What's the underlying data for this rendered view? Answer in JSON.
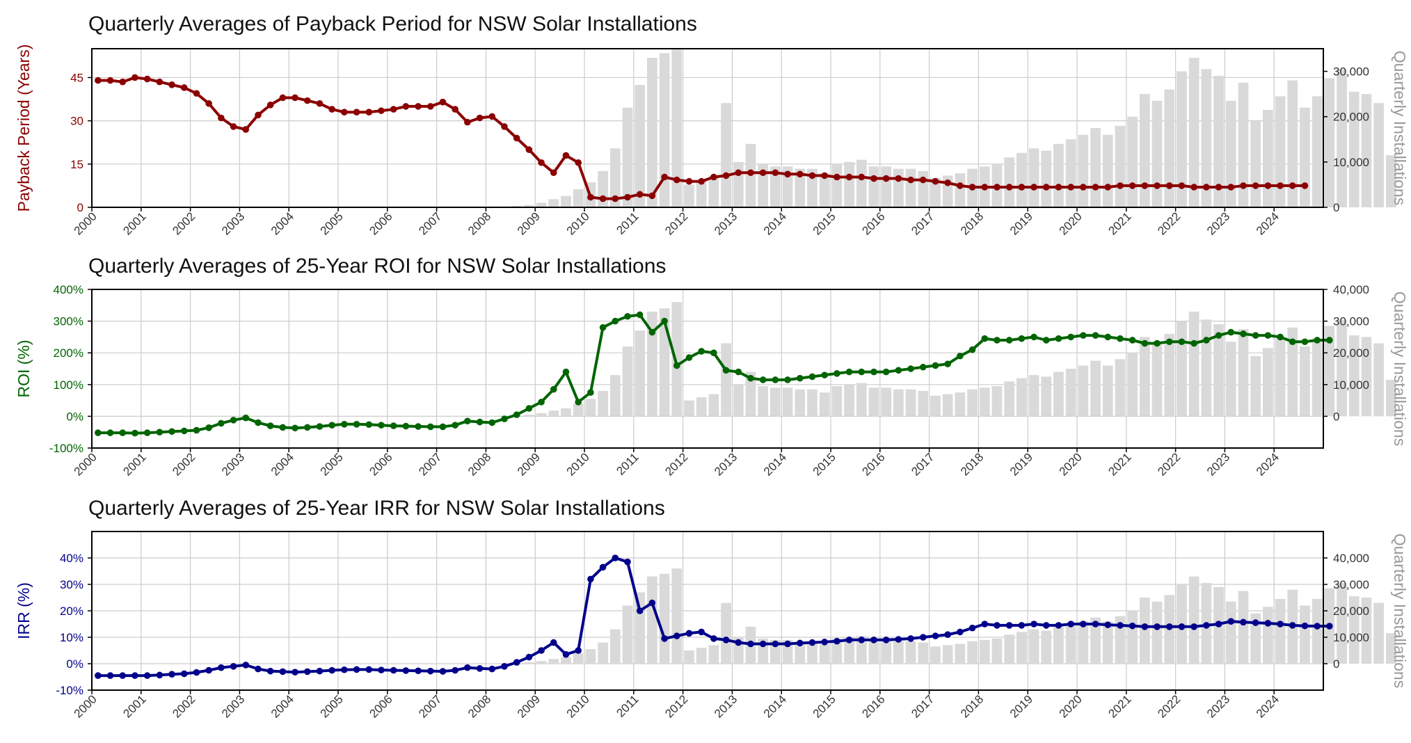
{
  "colors": {
    "payback": "#8B0000",
    "roi": "#006400",
    "irr": "#00008B",
    "bars": "#D9D9D9",
    "grid": "#CCCCCC",
    "right_axis_label": "#999999"
  },
  "installations": {
    "start_year": 2000,
    "note_values_by_quarter": "quarterly installation counts, shared by all three panels",
    "values": [
      0,
      0,
      0,
      0,
      0,
      0,
      0,
      0,
      0,
      0,
      0,
      0,
      0,
      0,
      0,
      0,
      0,
      0,
      0,
      0,
      0,
      0,
      0,
      0,
      0,
      0,
      0,
      0,
      0,
      0,
      0,
      0,
      100,
      200,
      300,
      500,
      1000,
      1800,
      2500,
      4000,
      5500,
      8000,
      13000,
      22000,
      27000,
      33000,
      34000,
      36000,
      5000,
      6000,
      7000,
      23000,
      10000,
      14000,
      9500,
      9000,
      9000,
      8500,
      8500,
      7500,
      9500,
      10000,
      10500,
      9000,
      9000,
      8500,
      8500,
      8000,
      6500,
      7000,
      7500,
      8500,
      9000,
      9500,
      11000,
      12000,
      13000,
      12500,
      14000,
      15000,
      16000,
      17500,
      16000,
      18000,
      20000,
      25000,
      23500,
      26000,
      30000,
      33000,
      30500,
      29000,
      23500,
      27500,
      19000,
      21500,
      24500,
      28000,
      22000,
      24500,
      28500,
      30500,
      25500,
      25000,
      23000,
      11500
    ]
  },
  "chart_data": [
    {
      "type": "line",
      "title": "Quarterly Averages of Payback Period for NSW Solar Installations",
      "ylabel": "Payback Period (Years)",
      "ylabel_right": "Quarterly Installations",
      "ylim": [
        0,
        55
      ],
      "yticks": [
        0,
        15,
        30,
        45
      ],
      "yticklabels": [
        "0",
        "15",
        "30",
        "45"
      ],
      "ylim_right": [
        0,
        35000
      ],
      "yticks_right": [
        0,
        10000,
        20000,
        30000
      ],
      "yticklabels_right": [
        "0",
        "10,000",
        "20,000",
        "30,000"
      ],
      "xticklabels": [
        "2000",
        "2001",
        "2002",
        "2003",
        "2004",
        "2005",
        "2006",
        "2007",
        "2008",
        "2009",
        "2010",
        "2011",
        "2012",
        "2013",
        "2014",
        "2015",
        "2016",
        "2017",
        "2018",
        "2019",
        "2020",
        "2021",
        "2022",
        "2023",
        "2024"
      ],
      "grid": true,
      "series": [
        {
          "values": [
            44,
            44,
            43.5,
            45,
            44.5,
            43.5,
            42.5,
            41.5,
            39.5,
            36,
            31,
            28,
            27,
            32,
            35.5,
            38,
            38,
            37,
            36,
            34,
            33,
            33,
            33,
            33.5,
            34,
            35,
            35,
            35,
            36.5,
            34,
            29.5,
            31,
            31.5,
            28,
            24,
            20,
            15.5,
            12,
            18,
            15.5,
            3.5,
            3,
            3,
            3.5,
            4.5,
            4,
            10.5,
            9.5,
            9,
            9,
            10.5,
            11,
            12,
            12,
            12,
            12,
            11.5,
            11.5,
            11,
            11,
            10.5,
            10.5,
            10.5,
            10,
            10,
            10,
            9.5,
            9.5,
            9,
            8.5,
            7.5,
            7,
            7,
            7,
            7,
            7,
            7,
            7,
            7,
            7,
            7,
            7,
            7,
            7.5,
            7.5,
            7.5,
            7.5,
            7.5,
            7.5,
            7,
            7,
            7,
            7,
            7.5,
            7.5,
            7.5,
            7.5,
            7.5,
            7.5
          ]
        }
      ]
    },
    {
      "type": "line",
      "title": "Quarterly Averages of 25-Year ROI for NSW Solar Installations",
      "ylabel": "ROI (%)",
      "ylabel_right": "Quarterly Installations",
      "ylim": [
        -100,
        400
      ],
      "yticks": [
        -100,
        0,
        100,
        200,
        300,
        400
      ],
      "yticklabels": [
        "-100%",
        "0%",
        "100%",
        "200%",
        "300%",
        "400%"
      ],
      "ylim_right": [
        -10000,
        40000
      ],
      "yticks_right": [
        0,
        10000,
        20000,
        30000,
        40000
      ],
      "yticklabels_right": [
        "0",
        "10,000",
        "20,000",
        "30,000",
        "40,000"
      ],
      "xticklabels": [
        "2000",
        "2001",
        "2002",
        "2003",
        "2004",
        "2005",
        "2006",
        "2007",
        "2008",
        "2009",
        "2010",
        "2011",
        "2012",
        "2013",
        "2014",
        "2015",
        "2016",
        "2017",
        "2018",
        "2019",
        "2020",
        "2021",
        "2022",
        "2023",
        "2024"
      ],
      "grid": true,
      "series": [
        {
          "values": [
            -52,
            -52,
            -52,
            -53,
            -52,
            -50,
            -48,
            -46,
            -44,
            -36,
            -22,
            -12,
            -5,
            -20,
            -30,
            -35,
            -37,
            -35,
            -32,
            -28,
            -25,
            -25,
            -26,
            -28,
            -30,
            -31,
            -32,
            -33,
            -33,
            -28,
            -15,
            -18,
            -20,
            -8,
            5,
            25,
            45,
            85,
            140,
            45,
            75,
            280,
            300,
            315,
            320,
            265,
            300,
            160,
            185,
            205,
            200,
            145,
            140,
            120,
            115,
            115,
            115,
            120,
            125,
            130,
            135,
            140,
            140,
            140,
            140,
            145,
            150,
            155,
            160,
            165,
            190,
            210,
            245,
            240,
            240,
            245,
            250,
            240,
            245,
            250,
            255,
            255,
            250,
            245,
            240,
            230,
            230,
            235,
            235,
            230,
            240,
            255,
            265,
            260,
            255,
            255,
            250,
            235,
            235,
            240,
            240
          ]
        }
      ]
    },
    {
      "type": "line",
      "title": "Quarterly Averages of 25-Year IRR for NSW Solar Installations",
      "ylabel": "IRR (%)",
      "ylabel_right": "Quarterly Installations",
      "ylim": [
        -10,
        50
      ],
      "yticks": [
        -10,
        0,
        10,
        20,
        30,
        40
      ],
      "yticklabels": [
        "-10%",
        "0%",
        "10%",
        "20%",
        "30%",
        "40%"
      ],
      "ylim_right": [
        -10000,
        50000
      ],
      "yticks_right": [
        0,
        10000,
        20000,
        30000,
        40000
      ],
      "yticklabels_right": [
        "0",
        "10,000",
        "20,000",
        "30,000",
        "40,000"
      ],
      "xticklabels": [
        "2000",
        "2001",
        "2002",
        "2003",
        "2004",
        "2005",
        "2006",
        "2007",
        "2008",
        "2009",
        "2010",
        "2011",
        "2012",
        "2013",
        "2014",
        "2015",
        "2016",
        "2017",
        "2018",
        "2019",
        "2020",
        "2021",
        "2022",
        "2023",
        "2024"
      ],
      "grid": true,
      "series": [
        {
          "values": [
            -4.5,
            -4.5,
            -4.5,
            -4.5,
            -4.5,
            -4.3,
            -4,
            -3.8,
            -3.3,
            -2.5,
            -1.5,
            -1,
            -0.5,
            -2,
            -2.8,
            -3,
            -3.2,
            -3,
            -2.8,
            -2.5,
            -2.3,
            -2.2,
            -2.2,
            -2.4,
            -2.5,
            -2.6,
            -2.7,
            -2.8,
            -2.9,
            -2.5,
            -1.5,
            -1.8,
            -2,
            -1,
            0.5,
            2.5,
            5,
            8,
            3.5,
            5,
            32,
            36.5,
            40,
            38.5,
            20,
            23,
            9.5,
            10.5,
            11.5,
            12,
            9.5,
            9,
            8,
            7.5,
            7.5,
            7.5,
            7.5,
            7.8,
            8,
            8.2,
            8.5,
            9,
            9,
            9,
            9,
            9.2,
            9.5,
            10,
            10.5,
            11,
            12,
            13.5,
            15,
            14.5,
            14.5,
            14.5,
            15,
            14.5,
            14.5,
            15,
            15,
            15,
            14.7,
            14.5,
            14.3,
            14,
            14,
            14,
            14,
            14,
            14.5,
            15,
            16,
            15.7,
            15.5,
            15.3,
            15,
            14.5,
            14.3,
            14.2,
            14.2
          ]
        }
      ]
    }
  ]
}
